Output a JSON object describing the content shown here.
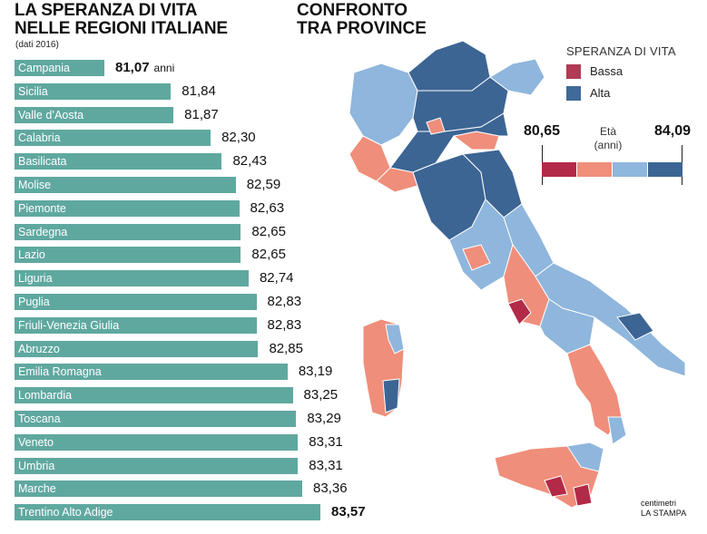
{
  "header": {
    "title_line1": "LA SPERANZA DI VITA",
    "title_line2": "NELLE REGIONI ITALIANE",
    "subtitle": "(dati 2016)",
    "map_title_line1": "CONFRONTO",
    "map_title_line2": "TRA PROVINCE"
  },
  "chart_data": [
    {
      "type": "bar",
      "orientation": "horizontal",
      "title": "LA SPERANZA DI VITA NELLE REGIONI ITALIANE",
      "subtitle": "(dati 2016)",
      "categories": [
        "Campania",
        "Sicilia",
        "Valle d’Aosta",
        "Calabria",
        "Basilicata",
        "Molise",
        "Piemonte",
        "Sardegna",
        "Lazio",
        "Liguria",
        "Puglia",
        "Friuli-Venezia Giulia",
        "Abruzzo",
        "Emilia Romagna",
        "Lombardia",
        "Toscana",
        "Veneto",
        "Umbria",
        "Marche",
        "Trentino Alto Adige"
      ],
      "values": [
        81.07,
        81.84,
        81.87,
        82.3,
        82.43,
        82.59,
        82.63,
        82.65,
        82.65,
        82.74,
        82.83,
        82.83,
        82.85,
        83.19,
        83.25,
        83.29,
        83.31,
        83.31,
        83.36,
        83.57
      ],
      "value_labels": [
        "81,07",
        "81,84",
        "81,87",
        "82,30",
        "82,43",
        "82,59",
        "82,63",
        "82,65",
        "82,65",
        "82,74",
        "82,83",
        "82,83",
        "82,85",
        "83,19",
        "83,25",
        "83,29",
        "83,31",
        "83,31",
        "83,36",
        "83,57"
      ],
      "first_value_unit": "anni",
      "color": "#5fa8a0"
    },
    {
      "type": "heatmap",
      "title": "CONFRONTO TRA PROVINCE",
      "legend_title": "SPERANZA DI VITA",
      "legend": [
        {
          "label": "Bassa",
          "color": "#b23a55"
        },
        {
          "label": "Alta",
          "color": "#3f6a99"
        }
      ],
      "scale": {
        "min_label": "80,65",
        "max_label": "84,09",
        "label_line1": "Età",
        "label_line2": "(anni)",
        "colors": [
          "#b22a48",
          "#ef8e7b",
          "#8fb6dc",
          "#3c6594"
        ]
      }
    }
  ],
  "credits": {
    "line1": "centimetri",
    "line2": "LA STAMPA"
  }
}
